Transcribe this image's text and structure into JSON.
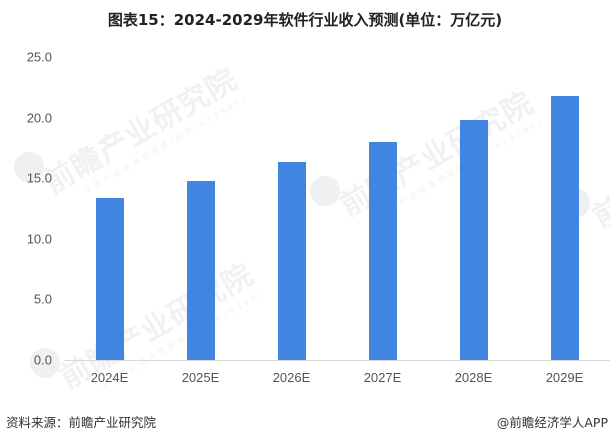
{
  "title": "图表15：2024-2029年软件行业收入预测(单位：万亿元)",
  "colors": {
    "bar": "#4285e0",
    "axis": "#d9d9d9",
    "tick_text": "#555555"
  },
  "chart_data": {
    "type": "bar",
    "title": "图表15：2024-2029年软件行业收入预测(单位：万亿元)",
    "xlabel": "",
    "ylabel": "万亿元",
    "categories": [
      "2024E",
      "2025E",
      "2026E",
      "2027E",
      "2028E",
      "2029E"
    ],
    "values": [
      13.4,
      14.8,
      16.3,
      18.0,
      19.8,
      21.8
    ],
    "ylim": [
      0,
      25
    ],
    "yticks": [
      "0.0",
      "5.0",
      "10.0",
      "15.0",
      "20.0",
      "25.0"
    ],
    "grid": false,
    "legend": null
  },
  "watermark": {
    "main": "前瞻产业研究院",
    "sub": "中国产业咨询领导者(股票:839599)"
  },
  "footer": {
    "source": "资料来源：前瞻产业研究院",
    "credit": "@前瞻经济学人APP"
  }
}
